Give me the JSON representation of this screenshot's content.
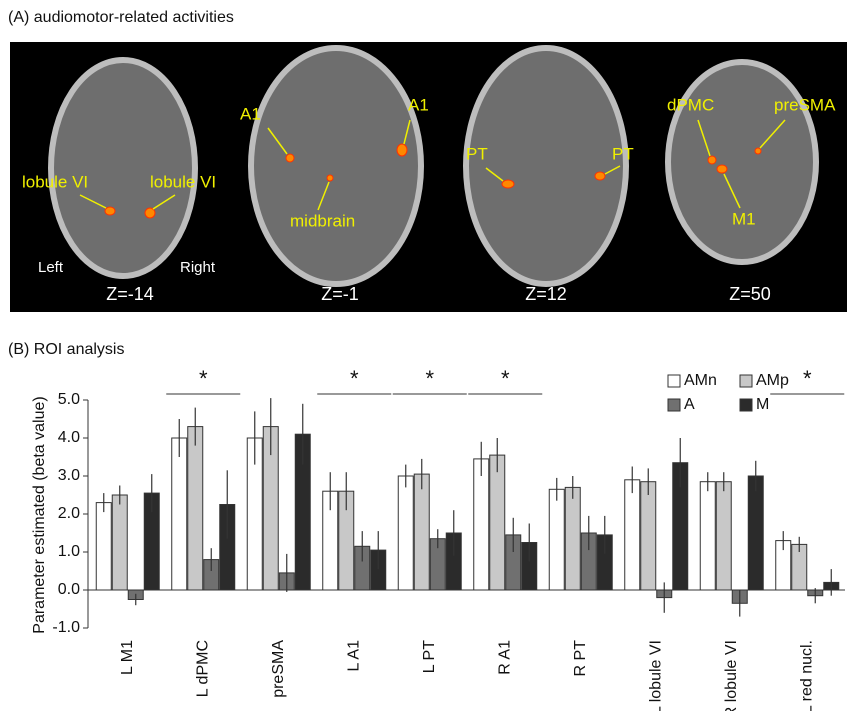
{
  "panel_a": {
    "title": "(A) audiomotor-related activities",
    "slices": [
      {
        "z": "Z=-14",
        "labels": [
          "lobule VI",
          "lobule VI",
          "Left",
          "Right"
        ]
      },
      {
        "z": "Z=-1",
        "labels": [
          "A1",
          "A1",
          "midbrain"
        ]
      },
      {
        "z": "Z=12",
        "labels": [
          "PT",
          "PT"
        ]
      },
      {
        "z": "Z=50",
        "labels": [
          "dPMC",
          "preSMA",
          "M1"
        ]
      }
    ]
  },
  "chart_data": {
    "type": "bar",
    "title": "(B) ROI analysis",
    "y_label": "Parameter estimated (beta value)",
    "categories": [
      "L M1",
      "L dPMC",
      "preSMA",
      "L A1",
      "L PT",
      "R A1",
      "R PT",
      "L lobule VI",
      "R lobule VI",
      "L red nucl."
    ],
    "stars": [
      null,
      "*",
      null,
      "*",
      "*",
      "*",
      null,
      null,
      null,
      "*"
    ],
    "series": [
      {
        "name": "AMn",
        "color": "#ffffff",
        "values": [
          2.3,
          4.0,
          4.0,
          2.6,
          3.0,
          3.45,
          2.65,
          2.9,
          2.85,
          1.3
        ],
        "errors": [
          0.25,
          0.5,
          0.7,
          0.5,
          0.3,
          0.45,
          0.3,
          0.35,
          0.25,
          0.25
        ]
      },
      {
        "name": "AMp",
        "color": "#c8c8c8",
        "values": [
          2.5,
          4.3,
          4.3,
          2.6,
          3.05,
          3.55,
          2.7,
          2.85,
          2.85,
          1.2
        ],
        "errors": [
          0.25,
          0.5,
          0.75,
          0.5,
          0.4,
          0.45,
          0.3,
          0.35,
          0.25,
          0.2
        ]
      },
      {
        "name": "A",
        "color": "#707070",
        "values": [
          -0.25,
          0.8,
          0.45,
          1.15,
          1.35,
          1.45,
          1.5,
          -0.2,
          -0.35,
          -0.15
        ],
        "errors": [
          0.15,
          0.3,
          0.5,
          0.4,
          0.25,
          0.45,
          0.45,
          0.4,
          0.35,
          0.2
        ]
      },
      {
        "name": "M",
        "color": "#2b2b2b",
        "values": [
          2.55,
          2.25,
          4.1,
          1.05,
          1.5,
          1.25,
          1.45,
          3.35,
          3.0,
          0.2
        ],
        "errors": [
          0.5,
          0.9,
          0.8,
          0.5,
          0.6,
          0.5,
          0.5,
          0.65,
          0.4,
          0.35
        ]
      }
    ],
    "ylim": [
      -1,
      5
    ],
    "yticks": [
      {
        "value": -1,
        "label": "-1.0"
      },
      {
        "value": 0,
        "label": "0.0"
      },
      {
        "value": 1,
        "label": "1.0"
      },
      {
        "value": 2,
        "label": "2.0"
      },
      {
        "value": 3,
        "label": "3.0"
      },
      {
        "value": 4,
        "label": "4.0"
      },
      {
        "value": 5,
        "label": "5.0"
      }
    ],
    "legend": "top-right"
  }
}
